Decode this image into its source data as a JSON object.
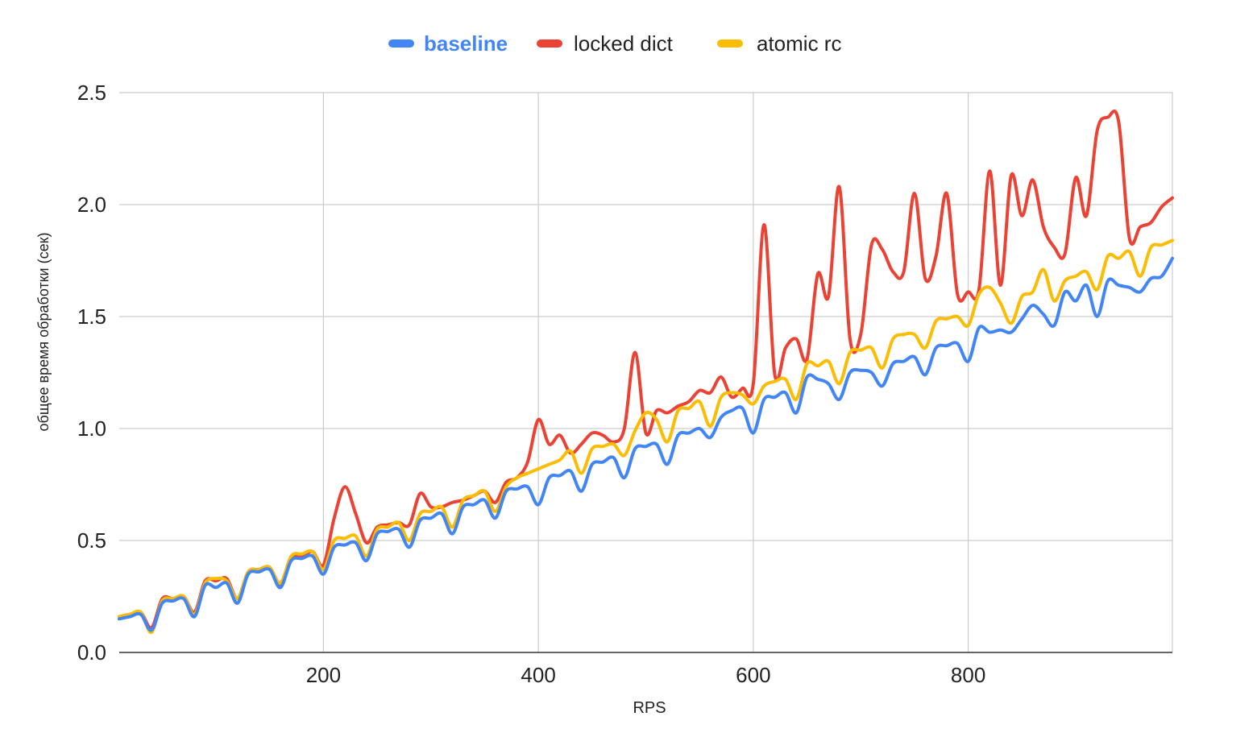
{
  "chart_data": {
    "type": "line",
    "title": "",
    "xlabel": "RPS",
    "ylabel": "общее время обработки (сек)",
    "xlim": [
      10,
      990
    ],
    "ylim": [
      0,
      2.5
    ],
    "x_ticks": [
      200,
      400,
      600,
      800
    ],
    "x_tick_labels": [
      "200",
      "400",
      "600",
      "800"
    ],
    "y_ticks": [
      0.0,
      0.5,
      1.0,
      1.5,
      2.0,
      2.5
    ],
    "y_tick_labels": [
      "0.0",
      "0.5",
      "1.0",
      "1.5",
      "2.0",
      "2.5"
    ],
    "grid": true,
    "legend_position": "top-center",
    "x": [
      10,
      20,
      30,
      40,
      50,
      60,
      70,
      80,
      90,
      100,
      110,
      120,
      130,
      140,
      150,
      160,
      170,
      180,
      190,
      200,
      210,
      220,
      230,
      240,
      250,
      260,
      270,
      280,
      290,
      300,
      310,
      320,
      330,
      340,
      350,
      360,
      370,
      380,
      390,
      400,
      410,
      420,
      430,
      440,
      450,
      460,
      470,
      480,
      490,
      500,
      510,
      520,
      530,
      540,
      550,
      560,
      570,
      580,
      590,
      600,
      610,
      620,
      630,
      640,
      650,
      660,
      670,
      680,
      690,
      700,
      710,
      720,
      730,
      740,
      750,
      760,
      770,
      780,
      790,
      800,
      810,
      820,
      830,
      840,
      850,
      860,
      870,
      880,
      890,
      900,
      910,
      920,
      930,
      940,
      950,
      960,
      970,
      980,
      990
    ],
    "series": [
      {
        "name": "baseline",
        "color": "#4285f4",
        "values": [
          0.15,
          0.16,
          0.17,
          0.1,
          0.22,
          0.23,
          0.24,
          0.16,
          0.3,
          0.29,
          0.31,
          0.22,
          0.35,
          0.36,
          0.37,
          0.29,
          0.41,
          0.42,
          0.43,
          0.35,
          0.47,
          0.48,
          0.49,
          0.41,
          0.53,
          0.54,
          0.55,
          0.47,
          0.59,
          0.6,
          0.62,
          0.53,
          0.65,
          0.66,
          0.68,
          0.6,
          0.72,
          0.73,
          0.74,
          0.66,
          0.78,
          0.79,
          0.81,
          0.72,
          0.84,
          0.85,
          0.87,
          0.78,
          0.91,
          0.92,
          0.93,
          0.84,
          0.97,
          0.98,
          1.0,
          0.96,
          1.05,
          1.08,
          1.09,
          0.98,
          1.13,
          1.14,
          1.16,
          1.07,
          1.23,
          1.22,
          1.2,
          1.13,
          1.25,
          1.26,
          1.25,
          1.19,
          1.29,
          1.3,
          1.32,
          1.24,
          1.36,
          1.37,
          1.38,
          1.3,
          1.45,
          1.43,
          1.44,
          1.43,
          1.49,
          1.55,
          1.51,
          1.46,
          1.61,
          1.57,
          1.64,
          1.5,
          1.66,
          1.64,
          1.63,
          1.61,
          1.67,
          1.68,
          1.76
        ]
      },
      {
        "name": "locked dict",
        "color": "#ea4335",
        "values": [
          0.16,
          0.17,
          0.18,
          0.11,
          0.24,
          0.24,
          0.25,
          0.18,
          0.32,
          0.32,
          0.33,
          0.24,
          0.36,
          0.37,
          0.38,
          0.3,
          0.42,
          0.43,
          0.45,
          0.39,
          0.6,
          0.74,
          0.62,
          0.49,
          0.56,
          0.57,
          0.58,
          0.57,
          0.71,
          0.65,
          0.65,
          0.67,
          0.68,
          0.7,
          0.72,
          0.67,
          0.76,
          0.78,
          0.85,
          1.04,
          0.93,
          0.97,
          0.89,
          0.93,
          0.98,
          0.97,
          0.94,
          1.0,
          1.34,
          0.98,
          1.08,
          1.07,
          1.1,
          1.12,
          1.17,
          1.16,
          1.23,
          1.14,
          1.18,
          1.2,
          1.91,
          1.24,
          1.36,
          1.4,
          1.31,
          1.69,
          1.59,
          2.08,
          1.4,
          1.42,
          1.82,
          1.8,
          1.7,
          1.7,
          2.05,
          1.67,
          1.77,
          2.05,
          1.6,
          1.61,
          1.62,
          2.15,
          1.64,
          2.13,
          1.95,
          2.11,
          1.9,
          1.81,
          1.78,
          2.12,
          1.95,
          2.33,
          2.39,
          2.37,
          1.85,
          1.9,
          1.92,
          1.99,
          2.03
        ]
      },
      {
        "name": "atomic rc",
        "color": "#fbbc04",
        "values": [
          0.16,
          0.17,
          0.18,
          0.09,
          0.23,
          0.24,
          0.25,
          0.17,
          0.31,
          0.33,
          0.32,
          0.24,
          0.36,
          0.37,
          0.38,
          0.31,
          0.43,
          0.44,
          0.45,
          0.37,
          0.5,
          0.51,
          0.52,
          0.43,
          0.55,
          0.56,
          0.58,
          0.5,
          0.62,
          0.63,
          0.65,
          0.56,
          0.68,
          0.7,
          0.72,
          0.63,
          0.74,
          0.78,
          0.8,
          0.82,
          0.84,
          0.86,
          0.9,
          0.8,
          0.91,
          0.92,
          0.93,
          0.88,
          0.99,
          1.07,
          1.04,
          0.94,
          1.08,
          1.09,
          1.12,
          1.01,
          1.14,
          1.16,
          1.15,
          1.11,
          1.19,
          1.21,
          1.22,
          1.13,
          1.29,
          1.28,
          1.3,
          1.2,
          1.34,
          1.35,
          1.36,
          1.27,
          1.4,
          1.42,
          1.42,
          1.36,
          1.48,
          1.49,
          1.5,
          1.46,
          1.6,
          1.63,
          1.56,
          1.47,
          1.59,
          1.61,
          1.71,
          1.57,
          1.66,
          1.68,
          1.7,
          1.62,
          1.77,
          1.76,
          1.79,
          1.68,
          1.81,
          1.82,
          1.84
        ]
      }
    ],
    "active_legend_index": 0
  }
}
